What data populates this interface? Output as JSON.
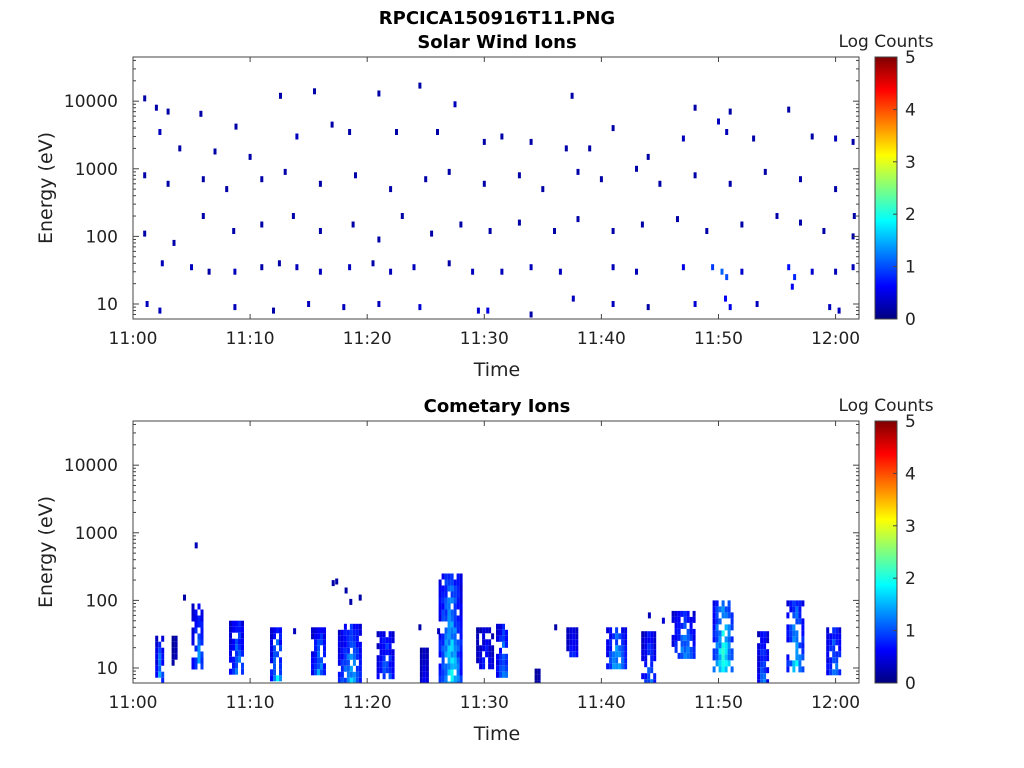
{
  "figure": {
    "main_title": "RPCICA150916T11.PNG"
  },
  "colormap": {
    "name": "jet",
    "stops": [
      "#00007f",
      "#0000ff",
      "#007fff",
      "#00ffff",
      "#7fff7f",
      "#ffff00",
      "#ff7f00",
      "#ff0000",
      "#7f0000"
    ]
  },
  "chart_data": [
    {
      "type": "heatmap",
      "title": "Solar Wind Ions",
      "xlabel": "Time",
      "ylabel": "Energy (eV)",
      "x_range_minutes": [
        0,
        62
      ],
      "x_ticks": [
        {
          "value": 0,
          "label": "11:00"
        },
        {
          "value": 10,
          "label": "11:10"
        },
        {
          "value": 20,
          "label": "11:20"
        },
        {
          "value": 30,
          "label": "11:30"
        },
        {
          "value": 40,
          "label": "11:40"
        },
        {
          "value": 50,
          "label": "11:50"
        },
        {
          "value": 60,
          "label": "12:00"
        }
      ],
      "y_scale": "log",
      "y_range": [
        6,
        45000
      ],
      "y_ticks": [
        {
          "value": 10,
          "label": "10"
        },
        {
          "value": 100,
          "label": "100"
        },
        {
          "value": 1000,
          "label": "1000"
        },
        {
          "value": 10000,
          "label": "10000"
        }
      ],
      "colorbar": {
        "label": "Log Counts",
        "range": [
          0,
          5
        ],
        "ticks": [
          "0",
          "1",
          "2",
          "3",
          "4",
          "5"
        ]
      },
      "cells": [
        [
          1,
          11000,
          0.2
        ],
        [
          2,
          8000,
          0.2
        ],
        [
          2.3,
          3500,
          0.3
        ],
        [
          3,
          7000,
          0.2
        ],
        [
          4,
          2000,
          0.2
        ],
        [
          5.8,
          6500,
          0.2
        ],
        [
          7,
          1800,
          0.2
        ],
        [
          8.8,
          4200,
          0.2
        ],
        [
          10,
          1500,
          0.2
        ],
        [
          12.6,
          12000,
          0.2
        ],
        [
          14,
          3000,
          0.3
        ],
        [
          15.5,
          14000,
          0.2
        ],
        [
          17,
          4500,
          0.2
        ],
        [
          18.5,
          3500,
          0.2
        ],
        [
          21,
          13000,
          0.2
        ],
        [
          22.5,
          3500,
          0.2
        ],
        [
          24.5,
          17000,
          0.2
        ],
        [
          26,
          3500,
          0.2
        ],
        [
          27.5,
          9000,
          0.3
        ],
        [
          30,
          2500,
          0.2
        ],
        [
          31.5,
          3000,
          0.2
        ],
        [
          34,
          2500,
          0.2
        ],
        [
          37,
          2000,
          0.2
        ],
        [
          37.5,
          12000,
          0.2
        ],
        [
          39,
          2000,
          0.2
        ],
        [
          41,
          4000,
          0.2
        ],
        [
          44,
          1500,
          0.2
        ],
        [
          47,
          2800,
          0.3
        ],
        [
          48,
          8000,
          0.2
        ],
        [
          50,
          5000,
          0.3
        ],
        [
          50.7,
          3500,
          0.3
        ],
        [
          51,
          7000,
          0.2
        ],
        [
          53,
          2800,
          0.2
        ],
        [
          56,
          7500,
          0.2
        ],
        [
          58,
          3000,
          0.2
        ],
        [
          60,
          2800,
          0.3
        ],
        [
          61.5,
          2500,
          0.2
        ],
        [
          1,
          800,
          0.2
        ],
        [
          3,
          600,
          0.2
        ],
        [
          6,
          700,
          0.2
        ],
        [
          8,
          500,
          0.2
        ],
        [
          11,
          700,
          0.2
        ],
        [
          13,
          900,
          0.2
        ],
        [
          16,
          600,
          0.2
        ],
        [
          19,
          800,
          0.2
        ],
        [
          22,
          500,
          0.2
        ],
        [
          25,
          700,
          0.2
        ],
        [
          27,
          900,
          0.2
        ],
        [
          30,
          600,
          0.2
        ],
        [
          33,
          800,
          0.2
        ],
        [
          35,
          500,
          0.2
        ],
        [
          38,
          900,
          0.2
        ],
        [
          40,
          700,
          0.2
        ],
        [
          43,
          1000,
          0.2
        ],
        [
          45,
          600,
          0.2
        ],
        [
          48,
          800,
          0.2
        ],
        [
          51,
          600,
          0.2
        ],
        [
          54,
          900,
          0.2
        ],
        [
          57,
          700,
          0.2
        ],
        [
          60,
          500,
          0.2
        ],
        [
          61.6,
          200,
          0.2
        ],
        [
          1,
          110,
          0.2
        ],
        [
          3.5,
          80,
          0.2
        ],
        [
          6,
          200,
          0.2
        ],
        [
          8.6,
          120,
          0.2
        ],
        [
          11,
          150,
          0.2
        ],
        [
          13.7,
          200,
          0.2
        ],
        [
          16,
          120,
          0.2
        ],
        [
          18.8,
          150,
          0.2
        ],
        [
          21,
          90,
          0.2
        ],
        [
          23,
          200,
          0.2
        ],
        [
          25.5,
          110,
          0.2
        ],
        [
          28,
          150,
          0.2
        ],
        [
          30.5,
          120,
          0.2
        ],
        [
          33,
          160,
          0.2
        ],
        [
          36,
          120,
          0.2
        ],
        [
          38,
          180,
          0.2
        ],
        [
          41,
          120,
          0.2
        ],
        [
          43.5,
          150,
          0.2
        ],
        [
          46.5,
          180,
          0.2
        ],
        [
          49,
          120,
          0.2
        ],
        [
          52,
          150,
          0.2
        ],
        [
          55,
          200,
          0.2
        ],
        [
          57,
          160,
          0.2
        ],
        [
          59,
          120,
          0.2
        ],
        [
          61.5,
          100,
          0.2
        ],
        [
          2.5,
          40,
          0.3
        ],
        [
          5,
          35,
          0.3
        ],
        [
          6.5,
          30,
          0.2
        ],
        [
          8.7,
          30,
          0.3
        ],
        [
          11,
          35,
          0.2
        ],
        [
          12.5,
          40,
          0.2
        ],
        [
          14,
          35,
          0.3
        ],
        [
          16,
          30,
          0.3
        ],
        [
          18.5,
          35,
          0.3
        ],
        [
          20.5,
          40,
          0.2
        ],
        [
          22,
          30,
          0.3
        ],
        [
          24,
          35,
          0.3
        ],
        [
          27,
          40,
          0.2
        ],
        [
          29,
          30,
          0.3
        ],
        [
          31.5,
          30,
          0.3
        ],
        [
          34,
          35,
          0.3
        ],
        [
          36.5,
          30,
          0.3
        ],
        [
          41,
          35,
          0.3
        ],
        [
          43,
          30,
          0.3
        ],
        [
          47,
          35,
          0.5
        ],
        [
          49.5,
          35,
          0.9
        ],
        [
          50.3,
          30,
          1.1
        ],
        [
          50.7,
          25,
          1.0
        ],
        [
          52,
          30,
          0.4
        ],
        [
          56,
          35,
          0.7
        ],
        [
          56.5,
          25,
          0.8
        ],
        [
          58,
          30,
          0.4
        ],
        [
          60,
          30,
          0.3
        ],
        [
          61.5,
          35,
          0.3
        ],
        [
          1.2,
          10,
          0.3
        ],
        [
          2.3,
          8,
          0.3
        ],
        [
          8.7,
          9,
          0.3
        ],
        [
          12,
          8,
          0.2
        ],
        [
          15,
          10,
          0.3
        ],
        [
          18,
          9,
          0.3
        ],
        [
          21,
          10,
          0.3
        ],
        [
          24.5,
          9,
          0.4
        ],
        [
          29.5,
          8,
          0.4
        ],
        [
          30.3,
          8,
          0.5
        ],
        [
          34,
          7,
          0.2
        ],
        [
          37.6,
          12,
          0.3
        ],
        [
          41,
          10,
          0.3
        ],
        [
          44,
          9,
          0.2
        ],
        [
          48,
          10,
          0.4
        ],
        [
          50.6,
          12,
          0.6
        ],
        [
          51,
          9,
          0.5
        ],
        [
          53.3,
          10,
          0.3
        ],
        [
          56.3,
          18,
          0.6
        ],
        [
          59.5,
          9,
          0.3
        ],
        [
          60.3,
          8,
          0.3
        ]
      ]
    },
    {
      "type": "heatmap",
      "title": "Cometary Ions",
      "xlabel": "Time",
      "ylabel": "Energy (eV)",
      "x_range_minutes": [
        0,
        62
      ],
      "x_ticks": [
        {
          "value": 0,
          "label": "11:00"
        },
        {
          "value": 10,
          "label": "11:10"
        },
        {
          "value": 20,
          "label": "11:20"
        },
        {
          "value": 30,
          "label": "11:30"
        },
        {
          "value": 40,
          "label": "11:40"
        },
        {
          "value": 50,
          "label": "11:50"
        },
        {
          "value": 60,
          "label": "12:00"
        }
      ],
      "y_scale": "log",
      "y_range": [
        6,
        45000
      ],
      "y_ticks": [
        {
          "value": 10,
          "label": "10"
        },
        {
          "value": 100,
          "label": "100"
        },
        {
          "value": 1000,
          "label": "1000"
        },
        {
          "value": 10000,
          "label": "10000"
        }
      ],
      "colorbar": {
        "label": "Log Counts",
        "range": [
          0,
          5
        ],
        "ticks": [
          "0",
          "1",
          "2",
          "3",
          "4",
          "5"
        ]
      },
      "bursts": [
        {
          "t": 2.2,
          "e_lo": 6,
          "e_hi": 30,
          "peak": 1.6,
          "width": 0.6
        },
        {
          "t": 3.5,
          "e_lo": 12,
          "e_hi": 30,
          "peak": 0.5,
          "width": 0.4
        },
        {
          "t": 5.5,
          "e_lo": 10,
          "e_hi": 90,
          "peak": 1.4,
          "width": 1.0
        },
        {
          "t": 8.8,
          "e_lo": 8,
          "e_hi": 50,
          "peak": 1.5,
          "width": 1.2
        },
        {
          "t": 12.2,
          "e_lo": 7,
          "e_hi": 40,
          "peak": 1.7,
          "width": 1.0
        },
        {
          "t": 15.8,
          "e_lo": 8,
          "e_hi": 40,
          "peak": 1.5,
          "width": 1.2
        },
        {
          "t": 18.5,
          "e_lo": 6,
          "e_hi": 45,
          "peak": 1.6,
          "width": 2.0
        },
        {
          "t": 21.5,
          "e_lo": 8,
          "e_hi": 35,
          "peak": 1.3,
          "width": 1.4
        },
        {
          "t": 24.8,
          "e_lo": 6,
          "e_hi": 20,
          "peak": 0.8,
          "width": 0.6
        },
        {
          "t": 27.0,
          "e_lo": 6,
          "e_hi": 250,
          "peak": 2.0,
          "width": 1.8
        },
        {
          "t": 30.0,
          "e_lo": 10,
          "e_hi": 40,
          "peak": 0.9,
          "width": 1.4
        },
        {
          "t": 31.5,
          "e_lo": 8,
          "e_hi": 45,
          "peak": 1.5,
          "width": 1.0
        },
        {
          "t": 34.5,
          "e_lo": 6,
          "e_hi": 12,
          "peak": 0.4,
          "width": 0.4
        },
        {
          "t": 37.5,
          "e_lo": 15,
          "e_hi": 40,
          "peak": 1.0,
          "width": 1.0
        },
        {
          "t": 41.2,
          "e_lo": 10,
          "e_hi": 40,
          "peak": 1.7,
          "width": 1.6
        },
        {
          "t": 44.0,
          "e_lo": 6,
          "e_hi": 35,
          "peak": 1.3,
          "width": 1.2
        },
        {
          "t": 47.0,
          "e_lo": 15,
          "e_hi": 70,
          "peak": 1.5,
          "width": 2.0
        },
        {
          "t": 50.3,
          "e_lo": 10,
          "e_hi": 100,
          "peak": 2.4,
          "width": 1.6
        },
        {
          "t": 53.7,
          "e_lo": 6,
          "e_hi": 35,
          "peak": 1.4,
          "width": 0.8
        },
        {
          "t": 56.5,
          "e_lo": 10,
          "e_hi": 100,
          "peak": 1.9,
          "width": 1.4
        },
        {
          "t": 59.8,
          "e_lo": 8,
          "e_hi": 40,
          "peak": 1.6,
          "width": 1.2
        }
      ],
      "cells": [
        [
          5.4,
          650,
          0.3
        ],
        [
          4.4,
          110,
          0.2
        ],
        [
          17.1,
          180,
          0.2
        ],
        [
          17.4,
          190,
          0.2
        ],
        [
          18.2,
          140,
          0.2
        ],
        [
          18.6,
          95,
          0.2
        ],
        [
          19.4,
          110,
          0.2
        ],
        [
          13.8,
          35,
          0.3
        ],
        [
          24.5,
          40,
          0.2
        ],
        [
          26.1,
          35,
          0.3
        ],
        [
          36.1,
          40,
          0.2
        ],
        [
          44.1,
          60,
          0.3
        ],
        [
          45.3,
          50,
          0.4
        ]
      ]
    }
  ]
}
